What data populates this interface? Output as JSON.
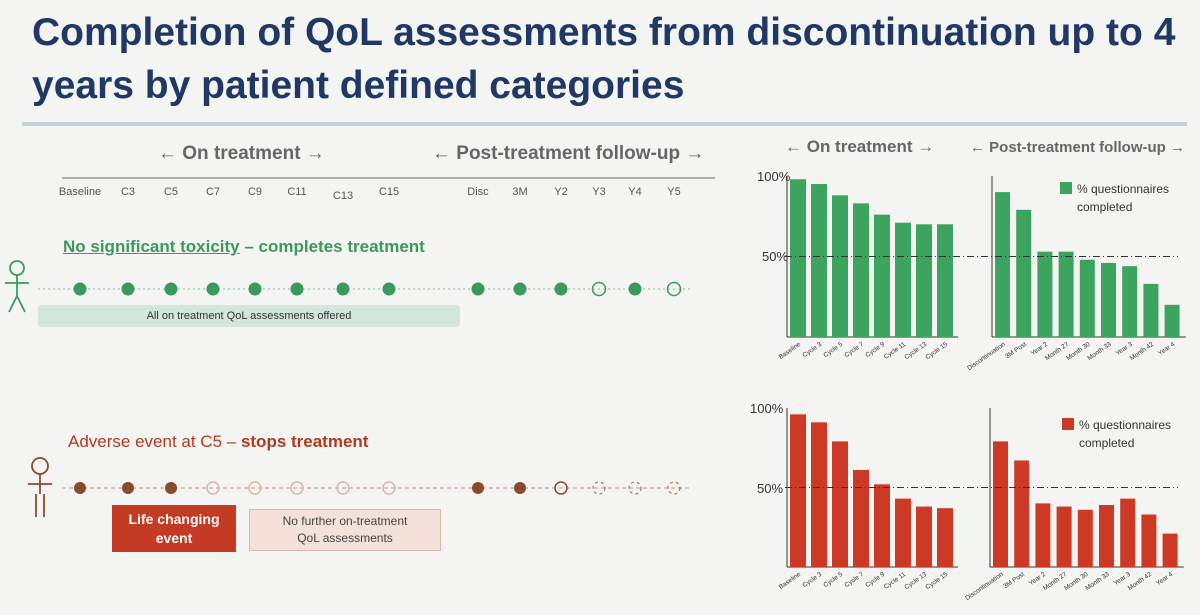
{
  "slide": {
    "title": "Completion of QoL assessments from discontinuation up to 4 years by patient defined categories"
  },
  "timeline": {
    "on_treatment_label": "← On treatment →",
    "post_treatment_label": "← Post-treatment follow-up →",
    "ticks": [
      "Baseline",
      "C3",
      "C5",
      "C7",
      "C9",
      "C11",
      "C13",
      "C15",
      "Disc",
      "3M",
      "Y2",
      "Y3",
      "Y4",
      "Y5"
    ]
  },
  "scenario_green": {
    "heading_underlined": "No significant toxicity",
    "heading_rest": " – completes treatment",
    "note": "All on treatment QoL assessments offered",
    "color": "#3a9a5b",
    "dot_states": [
      "filled",
      "filled",
      "filled",
      "filled",
      "filled",
      "filled",
      "filled",
      "filled",
      "filled",
      "filled",
      "filled",
      "open",
      "filled",
      "open"
    ]
  },
  "scenario_red": {
    "heading_plain": "Adverse event at C5 – ",
    "heading_bold": "stops treatment",
    "event_box": "Life changing event",
    "note_box": "No further on-treatment QoL assessments",
    "color": "#8a4a2c",
    "dot_states": [
      "filled",
      "filled",
      "filled",
      "open",
      "open",
      "open",
      "open",
      "open",
      "filled",
      "filled",
      "open",
      "dashed",
      "dashed",
      "dashed"
    ]
  },
  "charts_header": {
    "on_treatment_label": "← On treatment →",
    "post_treatment_label": "← Post-treatment follow-up →"
  },
  "chart_data": [
    {
      "type": "bar",
      "color": "#3da45f",
      "legend": "% questionnaires completed",
      "y_tick_labels": [
        "100%",
        "50%"
      ],
      "ylim": [
        0,
        100
      ],
      "reference_line": 50,
      "panels": [
        {
          "categories": [
            "Baseline",
            "Cycle 3",
            "Cycle 5",
            "Cycle 7",
            "Cycle 9",
            "Cycle 11",
            "Cycle 13",
            "Cycle 15"
          ],
          "values": [
            98,
            95,
            88,
            83,
            76,
            71,
            70,
            70
          ]
        },
        {
          "categories": [
            "Discontinuation",
            "3M Post",
            "Year 2",
            "Month 27",
            "Month 30",
            "Month 33",
            "Year 3",
            "Month 42",
            "Year 4"
          ],
          "values": [
            90,
            79,
            53,
            53,
            48,
            46,
            44,
            33,
            20
          ]
        }
      ]
    },
    {
      "type": "bar",
      "color": "#cc3a25",
      "legend": "% questionnaires completed",
      "y_tick_labels": [
        "100%",
        "50%"
      ],
      "ylim": [
        0,
        100
      ],
      "reference_line": 50,
      "panels": [
        {
          "categories": [
            "Baseline",
            "Cycle 3",
            "Cycle 5",
            "Cycle 7",
            "Cycle 9",
            "Cycle 11",
            "Cycle 13",
            "Cycle 15"
          ],
          "values": [
            96,
            91,
            79,
            61,
            52,
            43,
            38,
            37
          ]
        },
        {
          "categories": [
            "Discontinuation",
            "3M Post",
            "Year 2",
            "Month 27",
            "Month 30",
            "Month 33",
            "Year 3",
            "Month 42",
            "Year 4"
          ],
          "values": [
            79,
            67,
            40,
            38,
            36,
            39,
            43,
            33,
            21
          ]
        }
      ]
    }
  ]
}
